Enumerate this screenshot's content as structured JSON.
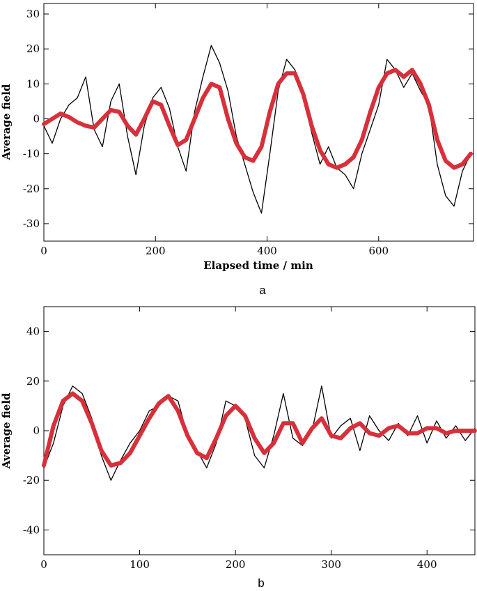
{
  "chart_data": [
    {
      "type": "line",
      "panel_label": "a",
      "xlabel": "Elapsed time / min",
      "ylabel": "Average field",
      "xlim": [
        0,
        770
      ],
      "ylim": [
        -35,
        33
      ],
      "xticks": [
        0,
        200,
        400,
        600
      ],
      "yticks": [
        -30,
        -20,
        -10,
        0,
        10,
        20,
        30
      ],
      "grid": false,
      "legend": "none",
      "colors": {
        "noisy": "#000000",
        "fit": "#d8303a"
      },
      "series": [
        {
          "style": "noisy",
          "x": [
            0,
            15,
            30,
            45,
            60,
            75,
            90,
            105,
            120,
            135,
            150,
            165,
            180,
            195,
            210,
            225,
            240,
            255,
            270,
            285,
            300,
            315,
            330,
            345,
            360,
            375,
            390,
            405,
            420,
            435,
            450,
            465,
            480,
            495,
            510,
            525,
            540,
            555,
            570,
            585,
            600,
            615,
            630,
            645,
            660,
            675,
            690,
            705,
            720,
            735,
            750,
            765
          ],
          "y": [
            -2,
            -7,
            0,
            4,
            6,
            12,
            -3,
            -8,
            5,
            10,
            -5,
            -16,
            -2,
            6,
            9,
            3,
            -8,
            -15,
            2,
            12,
            21,
            16,
            8,
            -5,
            -13,
            -21,
            -27,
            -10,
            8,
            17,
            14,
            6,
            -4,
            -13,
            -8,
            -14,
            -16,
            -20,
            -10,
            -3,
            4,
            17,
            14,
            9,
            13,
            8,
            4,
            -13,
            -22,
            -25,
            -15,
            -10
          ]
        },
        {
          "style": "fit",
          "x": [
            0,
            15,
            30,
            45,
            60,
            75,
            90,
            105,
            120,
            135,
            150,
            165,
            180,
            195,
            210,
            225,
            240,
            255,
            270,
            285,
            300,
            315,
            330,
            345,
            360,
            375,
            390,
            405,
            420,
            435,
            450,
            465,
            480,
            495,
            510,
            525,
            540,
            555,
            570,
            585,
            600,
            615,
            630,
            645,
            660,
            675,
            690,
            705,
            720,
            735,
            750,
            765
          ],
          "y": [
            -1.5,
            0,
            1.5,
            0.5,
            -1,
            -2,
            -2.5,
            0,
            2.5,
            2,
            -2,
            -4.5,
            0,
            5,
            4,
            -2,
            -7.5,
            -6,
            0,
            6,
            10,
            9,
            0,
            -7,
            -11,
            -12,
            -8,
            2,
            10,
            13,
            13,
            7,
            -2,
            -9,
            -13,
            -14,
            -13,
            -11,
            -6,
            2,
            9,
            13,
            14,
            12,
            14,
            10,
            4,
            -6,
            -12,
            -14,
            -13,
            -10
          ]
        }
      ]
    },
    {
      "type": "line",
      "panel_label": "b",
      "xlabel": "",
      "ylabel": "Average field",
      "xlim": [
        0,
        450
      ],
      "ylim": [
        -50,
        50
      ],
      "xticks": [
        0,
        100,
        200,
        300,
        400
      ],
      "yticks": [
        -40,
        -20,
        0,
        20,
        40
      ],
      "grid": false,
      "legend": "none",
      "colors": {
        "noisy": "#000000",
        "fit": "#d8303a"
      },
      "series": [
        {
          "style": "noisy",
          "x": [
            0,
            10,
            20,
            30,
            40,
            50,
            60,
            70,
            80,
            90,
            100,
            110,
            120,
            130,
            140,
            150,
            160,
            170,
            180,
            190,
            200,
            210,
            220,
            230,
            240,
            250,
            260,
            270,
            280,
            290,
            300,
            310,
            320,
            330,
            340,
            350,
            360,
            370,
            380,
            390,
            400,
            410,
            420,
            430,
            440,
            450
          ],
          "y": [
            -15,
            -5,
            10,
            18,
            15,
            5,
            -10,
            -20,
            -12,
            -5,
            0,
            8,
            10,
            14,
            12,
            -2,
            -8,
            -15,
            -5,
            12,
            10,
            5,
            -10,
            -15,
            -2,
            15,
            -3,
            -6,
            0,
            18,
            -3,
            2,
            5,
            -8,
            6,
            0,
            -4,
            3,
            -2,
            6,
            -5,
            4,
            -3,
            2,
            -4,
            1
          ]
        },
        {
          "style": "fit",
          "x": [
            0,
            10,
            20,
            30,
            40,
            50,
            60,
            70,
            80,
            90,
            100,
            110,
            120,
            130,
            140,
            150,
            160,
            170,
            180,
            190,
            200,
            210,
            220,
            230,
            240,
            250,
            260,
            270,
            280,
            290,
            300,
            310,
            320,
            330,
            340,
            350,
            360,
            370,
            380,
            390,
            400,
            410,
            420,
            430,
            440,
            450
          ],
          "y": [
            -14,
            2,
            12,
            15,
            12,
            3,
            -8,
            -14,
            -13,
            -9,
            -2,
            5,
            11,
            14,
            8,
            -2,
            -9,
            -11,
            -3,
            6,
            10,
            6,
            -3,
            -9,
            -5,
            3,
            3,
            -5,
            1,
            5,
            -2,
            -3,
            1,
            3,
            -1,
            -2,
            1,
            2,
            -1,
            -1,
            1,
            1,
            -1,
            0,
            0,
            0
          ]
        }
      ]
    }
  ]
}
